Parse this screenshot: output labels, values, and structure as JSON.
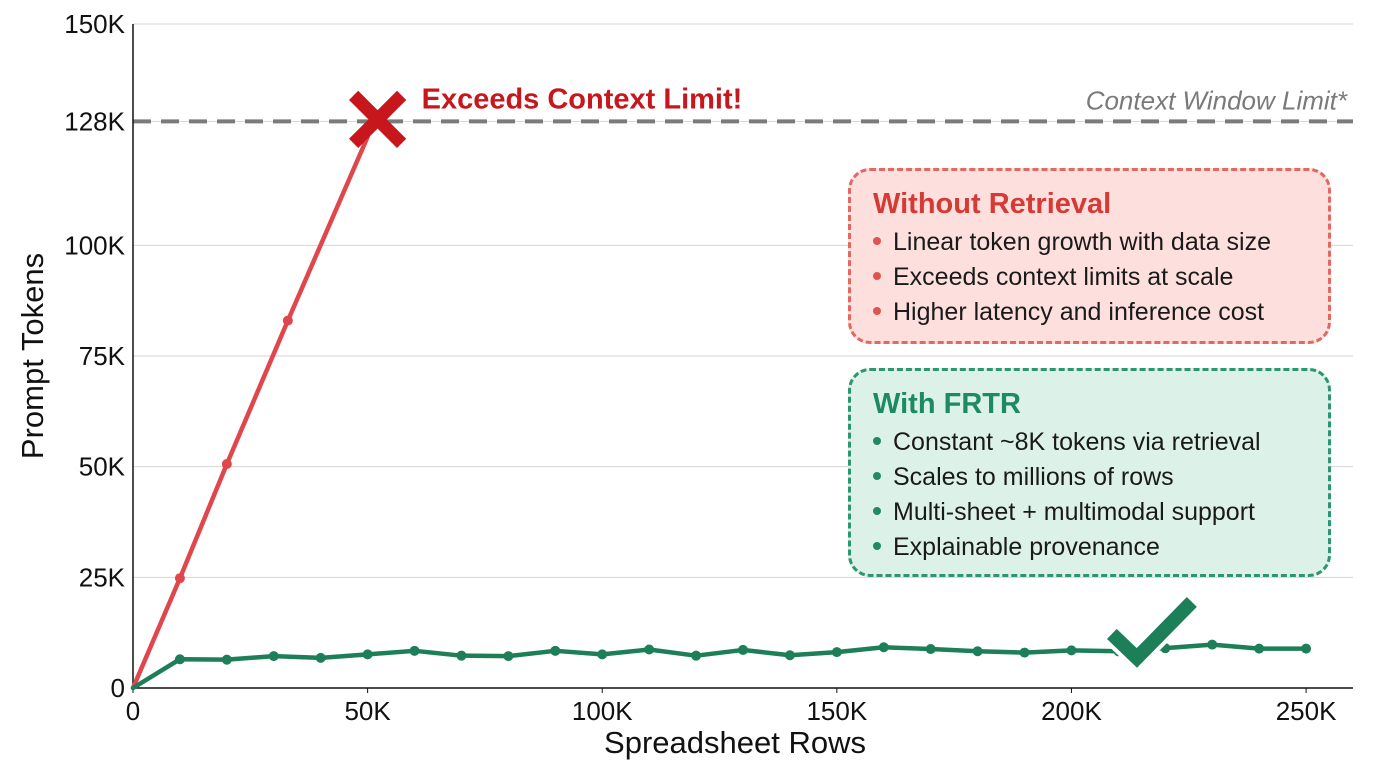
{
  "chart_data": {
    "type": "line",
    "xlabel": "Spreadsheet Rows",
    "ylabel": "Prompt Tokens",
    "xlim": [
      0,
      260000
    ],
    "ylim": [
      0,
      150000
    ],
    "x_ticks": [
      0,
      50000,
      100000,
      150000,
      200000,
      250000
    ],
    "x_tick_labels": [
      "0",
      "50K",
      "100K",
      "150K",
      "200K",
      "250K"
    ],
    "y_ticks": [
      0,
      25000,
      50000,
      75000,
      100000,
      128000,
      150000
    ],
    "y_tick_labels": [
      "0",
      "25K",
      "50K",
      "75K",
      "100K",
      "128K",
      "150K"
    ],
    "grid": true,
    "series": [
      {
        "name": "Without Retrieval",
        "color": "#e0474c",
        "points": [
          [
            0,
            0
          ],
          [
            10000,
            24800
          ],
          [
            20000,
            50600
          ],
          [
            33000,
            83000
          ],
          [
            50000,
            124500
          ]
        ]
      },
      {
        "name": "With FRTR",
        "color": "#1c7f58",
        "points": [
          [
            0,
            0
          ],
          [
            10000,
            6500
          ],
          [
            20000,
            6400
          ],
          [
            30000,
            7200
          ],
          [
            40000,
            6800
          ],
          [
            50000,
            7600
          ],
          [
            60000,
            8400
          ],
          [
            70000,
            7300
          ],
          [
            80000,
            7200
          ],
          [
            90000,
            8400
          ],
          [
            100000,
            7600
          ],
          [
            110000,
            8700
          ],
          [
            120000,
            7300
          ],
          [
            130000,
            8600
          ],
          [
            140000,
            7400
          ],
          [
            150000,
            8100
          ],
          [
            160000,
            9200
          ],
          [
            170000,
            8800
          ],
          [
            180000,
            8300
          ],
          [
            190000,
            8000
          ],
          [
            200000,
            8500
          ],
          [
            210000,
            8300
          ],
          [
            220000,
            9000
          ],
          [
            230000,
            9800
          ],
          [
            240000,
            8900
          ],
          [
            250000,
            8900
          ]
        ]
      }
    ],
    "reference_line": {
      "y": 128000,
      "label": "Context Window Limit*",
      "color": "#7a7a7a"
    },
    "annotations": {
      "exceed": {
        "x": 50000,
        "y": 128000,
        "label": "Exceeds Context Limit!",
        "color": "#c8161d"
      },
      "check": {
        "x": 215000,
        "y": 9500,
        "color": "#1c7f58"
      }
    }
  },
  "legend_panels": {
    "without_retrieval": {
      "title": "Without Retrieval",
      "items": [
        "Linear token growth with data size",
        "Exceeds context limits at scale",
        "Higher latency and inference cost"
      ]
    },
    "with_frtr": {
      "title": "With FRTR",
      "items": [
        "Constant ~8K tokens via retrieval",
        "Scales to millions of rows",
        "Multi-sheet + multimodal support",
        "Explainable provenance"
      ]
    }
  }
}
